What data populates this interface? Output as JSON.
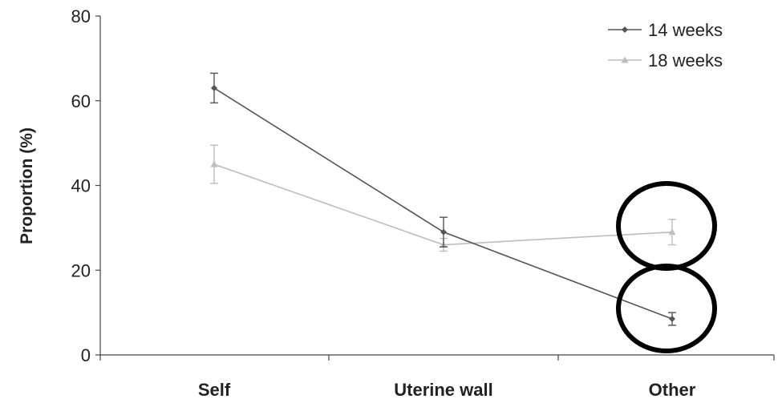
{
  "chart_data": {
    "type": "line",
    "title": "",
    "xlabel": "",
    "ylabel": "Proportion (%)",
    "categories": [
      "Self",
      "Uterine wall",
      "Other"
    ],
    "ylim": [
      0,
      80
    ],
    "yticks": [
      0,
      20,
      40,
      60,
      80
    ],
    "grid": false,
    "legend_position": "top-right",
    "series": [
      {
        "name": "14 weeks",
        "values": [
          63,
          29,
          8.5
        ],
        "error": [
          3.5,
          3.5,
          1.5
        ],
        "color": "#555555",
        "marker": "diamond"
      },
      {
        "name": "18 weeks",
        "values": [
          45,
          26,
          29
        ],
        "error": [
          4.5,
          1.5,
          3
        ],
        "color": "#bdbdbd",
        "marker": "triangle"
      }
    ],
    "annotations": [
      {
        "shape": "circle",
        "category": "Other",
        "series": "18 weeks",
        "color": "#000000"
      },
      {
        "shape": "circle",
        "category": "Other",
        "series": "14 weeks",
        "color": "#000000"
      }
    ]
  }
}
